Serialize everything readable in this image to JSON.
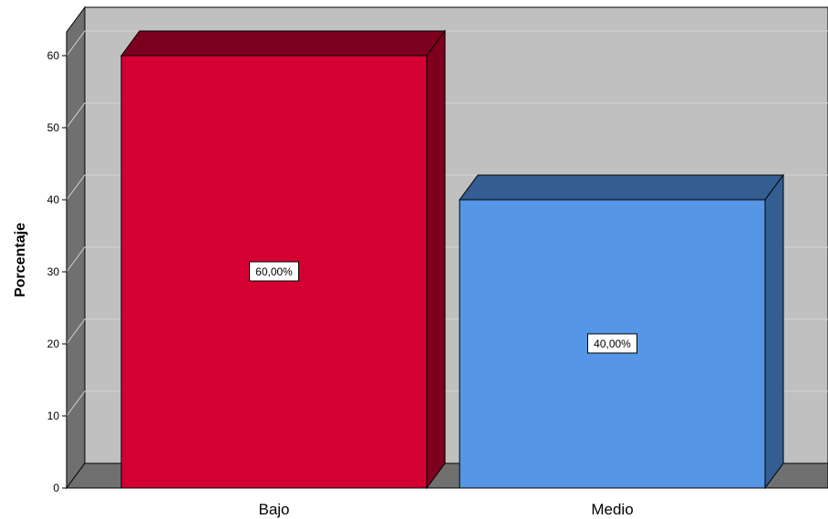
{
  "chart_data": {
    "type": "bar",
    "style": "3d",
    "title": "",
    "xlabel": "",
    "ylabel": "Porcentaje",
    "ylim": [
      0,
      60
    ],
    "yticks": [
      0,
      10,
      20,
      30,
      40,
      50,
      60
    ],
    "grid": true,
    "categories": [
      "Bajo",
      "Medio"
    ],
    "values": [
      60,
      40
    ],
    "data_labels": [
      "60,00%",
      "40,00%"
    ],
    "colors": {
      "bars": [
        "#D50032",
        "#5596E6"
      ],
      "bar_tops": [
        "#7D001E",
        "#345D91"
      ],
      "bar_sides": [
        "#7D001E",
        "#345D91"
      ],
      "back_wall": "#C0C0C0",
      "side_wall": "#707070",
      "floor": "#707070",
      "gridline": "#D4D4D4"
    }
  }
}
